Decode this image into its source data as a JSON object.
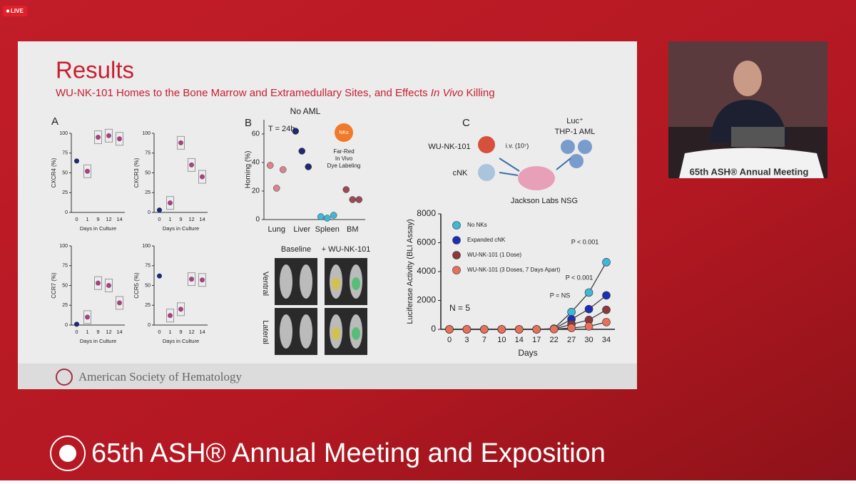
{
  "live_badge": "LIVE",
  "slide": {
    "title": "Results",
    "subtitle": [
      "WU-NK-101 Homes to the Bone Marrow and Extramedullary Sites, and Effects ",
      "In Vivo",
      " Killing"
    ],
    "panel_a": {
      "label": "A",
      "x_label": "Days in Culture",
      "categories": [
        "0",
        "1",
        "9",
        "12",
        "14"
      ],
      "ylim": [
        0,
        100
      ],
      "yticks": [
        0,
        25,
        50,
        75,
        100
      ],
      "dot_color": "#a0457f",
      "baseline_color": "#1c2a6e",
      "plots": [
        {
          "y_label": "CXCR4 (%)",
          "values": [
            65,
            52,
            95,
            97,
            93
          ]
        },
        {
          "y_label": "CXCR3 (%)",
          "values": [
            3,
            12,
            88,
            60,
            45
          ]
        },
        {
          "y_label": "CCR7 (%)",
          "values": [
            1,
            10,
            53,
            50,
            28
          ]
        },
        {
          "y_label": "CCR5 (%)",
          "values": [
            62,
            12,
            20,
            58,
            57
          ]
        }
      ]
    },
    "panel_b": {
      "label": "B",
      "title": "No AML",
      "note": "T = 24h",
      "badge": "NKs",
      "badge_text": [
        "Far-Red",
        "In Vivo",
        "Dye Labeling"
      ],
      "y_label": "Homing (%)",
      "ylim": [
        0,
        70
      ],
      "yticks": [
        0,
        20,
        40,
        60
      ],
      "categories": [
        "Lung",
        "Liver",
        "Spleen",
        "BM"
      ],
      "colors": [
        "#d9848c",
        "#1c2a6e",
        "#3db8d8",
        "#9b4a55"
      ],
      "values": [
        [
          38,
          22,
          35
        ],
        [
          62,
          48,
          37
        ],
        [
          2,
          1,
          3
        ],
        [
          21,
          14,
          14
        ]
      ]
    },
    "imaging": {
      "columns": [
        "Baseline",
        "+ WU-NK-101"
      ],
      "rows": [
        "Ventral",
        "Lateral"
      ]
    },
    "panel_c": {
      "label": "C",
      "diagram": {
        "drug": "WU-NK-101",
        "route": "i.v. (10⁷)",
        "control": "cNK",
        "target_line1": "Luc⁺",
        "target_line2": "THP-1 AML",
        "mouse": "Jackson Labs NSG"
      },
      "chart": {
        "type": "line",
        "x_label": "Days",
        "y_label": "Luciferase Activity (BLI Assay)",
        "categories": [
          "0",
          "3",
          "7",
          "10",
          "14",
          "17",
          "22",
          "27",
          "30",
          "34"
        ],
        "ylim": [
          0,
          8000
        ],
        "yticks": [
          0,
          2000,
          4000,
          6000,
          8000
        ],
        "series": [
          {
            "name": "No NKs",
            "color": "#3db8d8",
            "values": [
              0,
              0,
              0,
              0,
              0,
              0,
              50,
              1200,
              2550,
              4650
            ]
          },
          {
            "name": "Expanded cNK",
            "color": "#1a2fb8",
            "values": [
              0,
              0,
              0,
              0,
              0,
              0,
              30,
              700,
              1400,
              2350
            ]
          },
          {
            "name": "WU-NK-101 (1 Dose)",
            "color": "#8a3a3a",
            "values": [
              0,
              0,
              0,
              0,
              0,
              0,
              20,
              350,
              650,
              1350
            ]
          },
          {
            "name": "WU-NK-101 (3 Doses, 7 Days Apart)",
            "color": "#e8705a",
            "values": [
              0,
              0,
              0,
              0,
              0,
              0,
              10,
              100,
              200,
              500
            ]
          }
        ],
        "annotations": [
          "P = NS",
          "P < 0.001",
          "P < 0.001",
          "N = 5"
        ]
      }
    },
    "footer": "American Society of Hematology"
  },
  "podium": "65th ASH® Annual Meeting",
  "banner": "65th ASH® Annual Meeting and Exposition"
}
